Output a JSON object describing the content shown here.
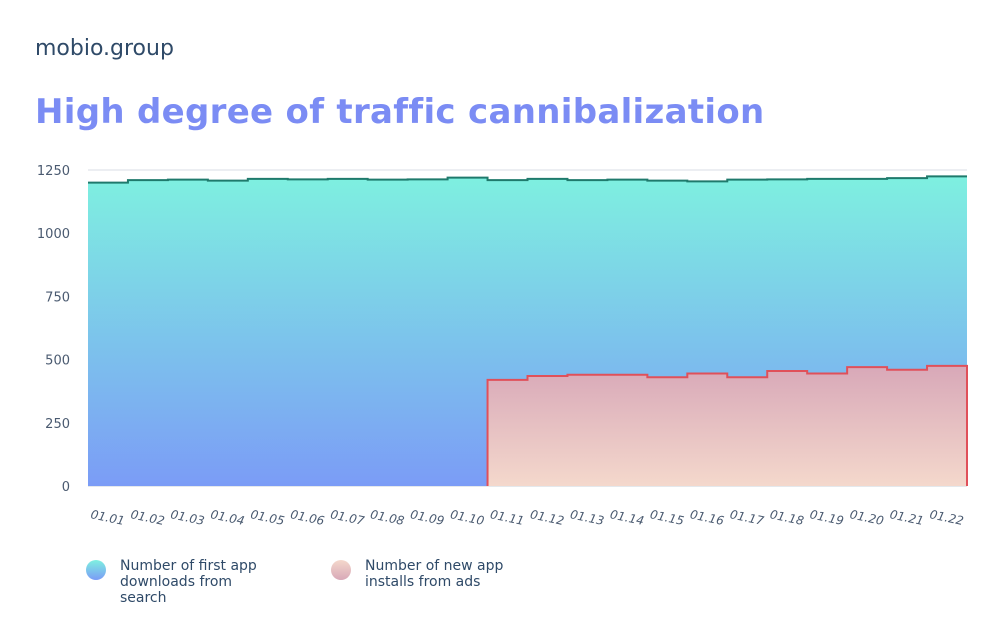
{
  "brand": "mobio.group",
  "title": "High degree of traffic cannibalization",
  "legend": {
    "search_line1": "Number of first app",
    "search_line2": "downloads from search",
    "ads_line1": "Number of new app",
    "ads_line2": "installs from ads"
  },
  "colors": {
    "search_top": "#7ef0e0",
    "search_bottom": "#7b9cf6",
    "search_line": "#1f7a6c",
    "ads_top": "#d8a8b8",
    "ads_bottom": "#f4d8cc",
    "ads_line": "#e0505a",
    "title": "#7b8cf4",
    "text": "#2f4a68"
  },
  "chart_data": {
    "type": "area",
    "step": true,
    "x": [
      "01.01",
      "01.02",
      "01.03",
      "01.04",
      "01.05",
      "01.06",
      "01.07",
      "01.08",
      "01.09",
      "01.10",
      "01.11",
      "01.12",
      "01.13",
      "01.14",
      "01.15",
      "01.16",
      "01.17",
      "01.18",
      "01.19",
      "01.20",
      "01.21",
      "01.22"
    ],
    "ylim": [
      0,
      1250
    ],
    "yticks": [
      0,
      250,
      500,
      750,
      1000,
      1250
    ],
    "grid": true,
    "legend_position": "bottom-left",
    "series": [
      {
        "name": "Number of first app downloads from search",
        "values": [
          1200,
          1210,
          1212,
          1208,
          1215,
          1213,
          1215,
          1212,
          1213,
          1220,
          1210,
          1215,
          1210,
          1212,
          1208,
          1205,
          1212,
          1213,
          1215,
          1215,
          1218,
          1225
        ]
      },
      {
        "name": "Number of new app installs from ads",
        "values": [
          0,
          0,
          0,
          0,
          0,
          0,
          0,
          0,
          0,
          0,
          420,
          435,
          440,
          440,
          430,
          445,
          430,
          455,
          445,
          470,
          460,
          475
        ]
      }
    ]
  }
}
